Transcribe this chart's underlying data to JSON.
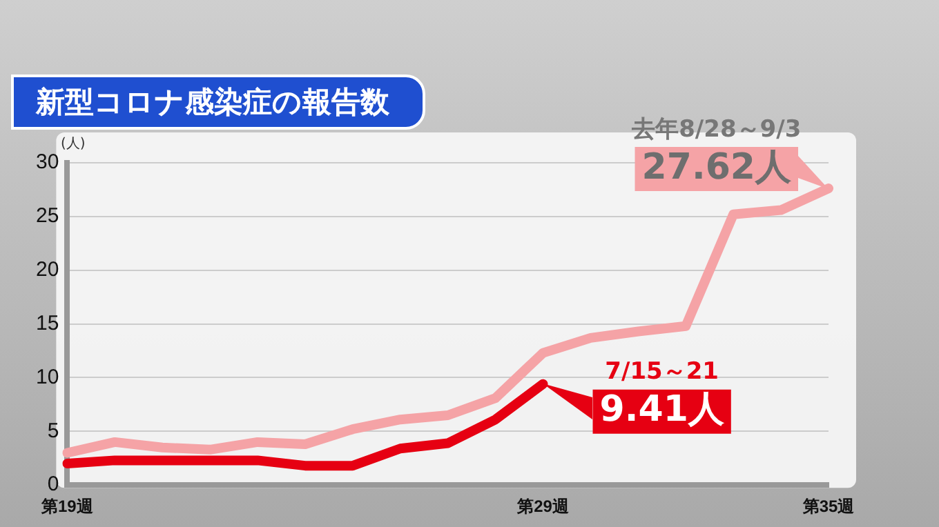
{
  "chart_data": {
    "type": "line",
    "title": "新型コロナ感染症の報告数",
    "ylabel": "(人)",
    "categories": [
      "第19週",
      null,
      null,
      null,
      null,
      null,
      null,
      null,
      null,
      null,
      "第29週",
      null,
      null,
      null,
      null,
      null,
      "第35週"
    ],
    "series": [
      {
        "color": "#f5a3a6",
        "values": [
          3.0,
          4.0,
          3.5,
          3.3,
          4.0,
          3.8,
          5.2,
          6.1,
          6.5,
          8.1,
          12.3,
          13.7,
          14.3,
          14.8,
          25.2,
          25.6,
          27.62
        ],
        "value_labels": [
          null,
          null,
          null,
          null,
          null,
          null,
          null,
          null,
          null,
          null,
          null,
          null,
          null,
          null,
          null,
          null,
          "27.62人"
        ]
      },
      {
        "color": "#e60012",
        "values": [
          2.0,
          2.3,
          2.3,
          2.3,
          2.3,
          1.8,
          1.8,
          3.4,
          3.9,
          6.1,
          9.41,
          null,
          null,
          null,
          null,
          null,
          null
        ],
        "value_labels": [
          null,
          null,
          null,
          null,
          null,
          null,
          null,
          null,
          null,
          null,
          "9.41人",
          null,
          null,
          null,
          null,
          null,
          null
        ]
      }
    ],
    "annotations": [
      {
        "text": "去年8/28～9/3",
        "x": "第35週",
        "y": 27.62
      },
      {
        "text": "7/15～21",
        "x": "第29週",
        "y": 9.41
      }
    ],
    "ylim": [
      0,
      30
    ],
    "yticks": [
      0,
      5,
      10,
      15,
      20,
      25,
      30
    ],
    "grid": "y",
    "legend": false,
    "marker": "none",
    "line_style": "solid"
  }
}
